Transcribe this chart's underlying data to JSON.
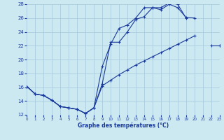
{
  "title": "Graphe des températures (°C)",
  "background_color": "#cce8f0",
  "grid_color": "#aaccdd",
  "line_color": "#1a3a9a",
  "xlim": [
    0,
    23
  ],
  "ylim": [
    12,
    28
  ],
  "xticks": [
    0,
    1,
    2,
    3,
    4,
    5,
    6,
    7,
    8,
    9,
    10,
    11,
    12,
    13,
    14,
    15,
    16,
    17,
    18,
    19,
    20,
    21,
    22,
    23
  ],
  "yticks": [
    12,
    14,
    16,
    18,
    20,
    22,
    24,
    26,
    28
  ],
  "series1": {
    "x": [
      0,
      1,
      2,
      3,
      4,
      5,
      6,
      7,
      8,
      9,
      10,
      11,
      12,
      13,
      14,
      15,
      16,
      17,
      18,
      19,
      20,
      21,
      22,
      23
    ],
    "y": [
      16.1,
      15.0,
      14.8,
      14.1,
      13.2,
      13.0,
      12.8,
      12.2,
      13.0,
      16.5,
      22.5,
      22.5,
      24.0,
      25.8,
      26.2,
      27.5,
      27.2,
      28.0,
      27.5,
      26.1,
      26.0,
      null,
      22.0,
      22.0
    ]
  },
  "series2": {
    "x": [
      0,
      1,
      2,
      3,
      4,
      5,
      6,
      7,
      8,
      9,
      10,
      11,
      12,
      13,
      14,
      15,
      16,
      17,
      18,
      19,
      20,
      21,
      22,
      23
    ],
    "y": [
      16.1,
      15.0,
      14.8,
      14.1,
      13.2,
      13.0,
      12.8,
      12.2,
      13.0,
      19.0,
      22.2,
      24.5,
      25.0,
      26.0,
      27.5,
      27.5,
      27.5,
      28.2,
      28.0,
      26.0,
      null,
      null,
      null,
      null
    ]
  },
  "series3": {
    "x": [
      0,
      1,
      2,
      3,
      4,
      5,
      6,
      7,
      8,
      9,
      10,
      11,
      12,
      13,
      14,
      15,
      16,
      17,
      18,
      19,
      20,
      21,
      22,
      23
    ],
    "y": [
      16.1,
      15.0,
      14.8,
      14.1,
      13.2,
      13.0,
      12.8,
      12.2,
      13.0,
      16.2,
      17.0,
      17.8,
      18.5,
      19.2,
      19.8,
      20.4,
      21.0,
      21.6,
      22.2,
      22.8,
      23.4,
      null,
      null,
      22.0
    ]
  }
}
